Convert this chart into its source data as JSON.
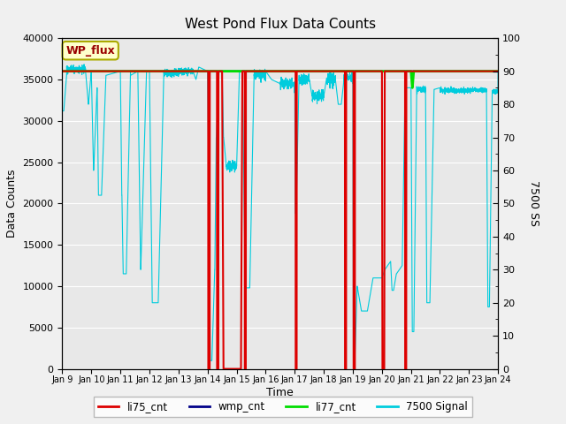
{
  "title": "West Pond Flux Data Counts",
  "xlabel": "Time",
  "ylabel_left": "Data Counts",
  "ylabel_right": "7500 SS",
  "ylim_left": [
    0,
    40000
  ],
  "ylim_right": [
    0,
    100
  ],
  "xlim": [
    9,
    24
  ],
  "xtick_labels": [
    "Jan 9",
    "Jan 10",
    "Jan 11",
    "Jan 12",
    "Jan 13",
    "Jan 14",
    "Jan 15",
    "Jan 16",
    "Jan 17",
    "Jan 18",
    "Jan 19",
    "Jan 20",
    "Jan 21",
    "Jan 22",
    "Jan 23",
    "Jan 24"
  ],
  "bg_color": "#e8e8e8",
  "fig_color": "#f0f0f0",
  "wp_flux_box_color": "#ffffcc",
  "wp_flux_box_edge": "#aaaa00",
  "li77_color": "#00dd00",
  "li75_color": "#dd0000",
  "wmp_color": "#000088",
  "cyan_color": "#00ccdd",
  "grid_color": "#ffffff",
  "li77_value": 36000,
  "wmp_value": 36000,
  "legend_items": [
    "li75_cnt",
    "wmp_cnt",
    "li77_cnt",
    "7500 Signal"
  ]
}
